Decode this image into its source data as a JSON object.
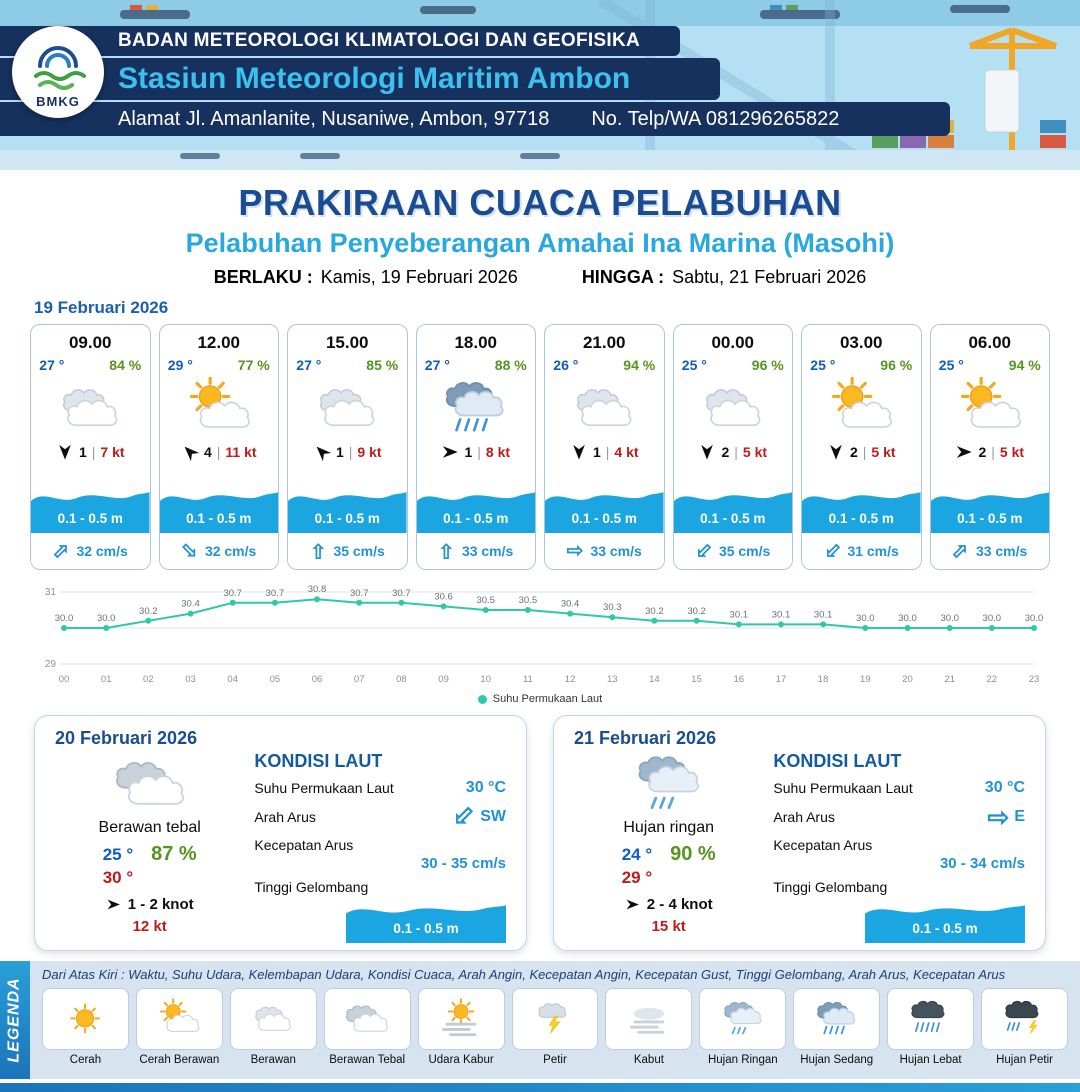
{
  "header": {
    "logo_text": "BMKG",
    "agency": "BADAN METEOROLOGI KLIMATOLOGI DAN GEOFISIKA",
    "station": "Stasiun Meteorologi Maritim Ambon",
    "address": "Alamat Jl. Amanlanite, Nusaniwe, Ambon, 97718",
    "contact": "No. Telp/WA  081296265822"
  },
  "title": {
    "main": "PRAKIRAAN CUACA PELABUHAN",
    "subtitle": "Pelabuhan Penyeberangan Amahai Ina Marina (Masohi)",
    "valid_label": "BERLAKU :",
    "valid_value": "Kamis, 19 Februari 2026",
    "until_label": "HINGGA :",
    "until_value": "Sabtu, 21 Februari 2026"
  },
  "glyphs": {
    "current_arrow": "⇨",
    "sep": "|"
  },
  "forecast": {
    "date": "19 Februari 2026",
    "cards": [
      {
        "time": "09.00",
        "temp": "27 °",
        "humidity": "84 %",
        "icon": "berawan",
        "wind_deg": 180,
        "wind_val": "1",
        "wind_kt": "7 kt",
        "wave": "0.1 - 0.5 m",
        "current_deg": -45,
        "current": "32 cm/s"
      },
      {
        "time": "12.00",
        "temp": "29 °",
        "humidity": "77 %",
        "icon": "cerah-berawan",
        "wind_deg": -45,
        "wind_val": "4",
        "wind_kt": "11 kt",
        "wave": "0.1 - 0.5 m",
        "current_deg": 45,
        "current": "32 cm/s"
      },
      {
        "time": "15.00",
        "temp": "27 °",
        "humidity": "85 %",
        "icon": "berawan",
        "wind_deg": -45,
        "wind_val": "1",
        "wind_kt": "9 kt",
        "wave": "0.1 - 0.5 m",
        "current_deg": -90,
        "current": "35 cm/s"
      },
      {
        "time": "18.00",
        "temp": "27 °",
        "humidity": "88 %",
        "icon": "hujan-sedang",
        "wind_deg": 90,
        "wind_val": "1",
        "wind_kt": "8 kt",
        "wave": "0.1 - 0.5 m",
        "current_deg": -90,
        "current": "33 cm/s"
      },
      {
        "time": "21.00",
        "temp": "26 °",
        "humidity": "94 %",
        "icon": "berawan",
        "wind_deg": 180,
        "wind_val": "1",
        "wind_kt": "4 kt",
        "wave": "0.1 - 0.5 m",
        "current_deg": 0,
        "current": "33 cm/s"
      },
      {
        "time": "00.00",
        "temp": "25 °",
        "humidity": "96 %",
        "icon": "berawan",
        "wind_deg": 180,
        "wind_val": "2",
        "wind_kt": "5 kt",
        "wave": "0.1 - 0.5 m",
        "current_deg": 135,
        "current": "35 cm/s"
      },
      {
        "time": "03.00",
        "temp": "25 °",
        "humidity": "96 %",
        "icon": "cerah-berawan",
        "wind_deg": 180,
        "wind_val": "2",
        "wind_kt": "5 kt",
        "wave": "0.1 - 0.5 m",
        "current_deg": 135,
        "current": "31 cm/s"
      },
      {
        "time": "06.00",
        "temp": "25 °",
        "humidity": "94 %",
        "icon": "cerah-berawan",
        "wind_deg": 90,
        "wind_val": "2",
        "wind_kt": "5 kt",
        "wave": "0.1 - 0.5 m",
        "current_deg": -45,
        "current": "33 cm/s"
      }
    ]
  },
  "chart_data": {
    "type": "line",
    "title": "",
    "xlabel": "",
    "ylabel": "",
    "series_label": "Suhu Permukaan Laut",
    "x": [
      "00",
      "01",
      "02",
      "03",
      "04",
      "05",
      "06",
      "07",
      "08",
      "09",
      "10",
      "11",
      "12",
      "13",
      "14",
      "15",
      "16",
      "17",
      "18",
      "19",
      "20",
      "21",
      "22",
      "23"
    ],
    "values": [
      30.0,
      30.0,
      30.2,
      30.4,
      30.7,
      30.7,
      30.8,
      30.7,
      30.7,
      30.6,
      30.5,
      30.5,
      30.4,
      30.3,
      30.2,
      30.2,
      30.1,
      30.1,
      30.1,
      30.0,
      30.0,
      30.0,
      30.0,
      30.0
    ],
    "ylim": [
      29,
      31
    ],
    "yticks": [
      29,
      30,
      31
    ],
    "line_color": "#2ec9a7",
    "grid": true,
    "legend_position": "bottom"
  },
  "daily": [
    {
      "date": "20 Februari 2026",
      "icon": "berawan-tebal",
      "condition": "Berawan tebal",
      "temp_min": "25 °",
      "humidity": "87 %",
      "temp_max": "30 °",
      "wind_deg": 90,
      "wind": "1 - 2 knot",
      "gust": "12 kt",
      "sea": {
        "header": "KONDISI LAUT",
        "sst_label": "Suhu Permukaan Laut",
        "sst": "30 °C",
        "dir_label": "Arah Arus",
        "dir": "SW",
        "dir_deg": 135,
        "speed_label": "Kecepatan Arus",
        "speed": "30 - 35 cm/s",
        "wave_label": "Tinggi Gelombang",
        "wave": "0.1 - 0.5 m"
      }
    },
    {
      "date": "21 Februari 2026",
      "icon": "hujan-ringan",
      "condition": "Hujan ringan",
      "temp_min": "24 °",
      "humidity": "90 %",
      "temp_max": "29 °",
      "wind_deg": 90,
      "wind": "2 - 4 knot",
      "gust": "15 kt",
      "sea": {
        "header": "KONDISI LAUT",
        "sst_label": "Suhu Permukaan Laut",
        "sst": "30 °C",
        "dir_label": "Arah Arus",
        "dir": "E",
        "dir_deg": 0,
        "speed_label": "Kecepatan Arus",
        "speed": "30 - 34 cm/s",
        "wave_label": "Tinggi Gelombang",
        "wave": "0.1 - 0.5 m"
      }
    }
  ],
  "legend": {
    "vertical_label": "LEGENDA",
    "description": "Dari Atas Kiri : Waktu, Suhu Udara, Kelembapan Udara, Kondisi Cuaca, Arah Angin, Kecepatan Angin, Kecepatan Gust, Tinggi Gelombang, Arah Arus, Kecepatan Arus",
    "items": [
      {
        "label": "Cerah",
        "icon": "cerah"
      },
      {
        "label": "Cerah Berawan",
        "icon": "cerah-berawan"
      },
      {
        "label": "Berawan",
        "icon": "berawan"
      },
      {
        "label": "Berawan Tebal",
        "icon": "berawan-tebal"
      },
      {
        "label": "Udara Kabur",
        "icon": "udara-kabur"
      },
      {
        "label": "Petir",
        "icon": "petir"
      },
      {
        "label": "Kabut",
        "icon": "kabut"
      },
      {
        "label": "Hujan Ringan",
        "icon": "hujan-ringan"
      },
      {
        "label": "Hujan Sedang",
        "icon": "hujan-sedang"
      },
      {
        "label": "Hujan Lebat",
        "icon": "hujan-lebat"
      },
      {
        "label": "Hujan Petir",
        "icon": "hujan-petir"
      }
    ]
  },
  "colors": {
    "accent_blue": "#2093d6",
    "dark_blue": "#1b4c92",
    "cyan": "#29a8e0",
    "green": "#55951f",
    "red": "#c01b1b",
    "wave_blue": "#1ba6e2",
    "chart_teal": "#2ec9a7"
  }
}
